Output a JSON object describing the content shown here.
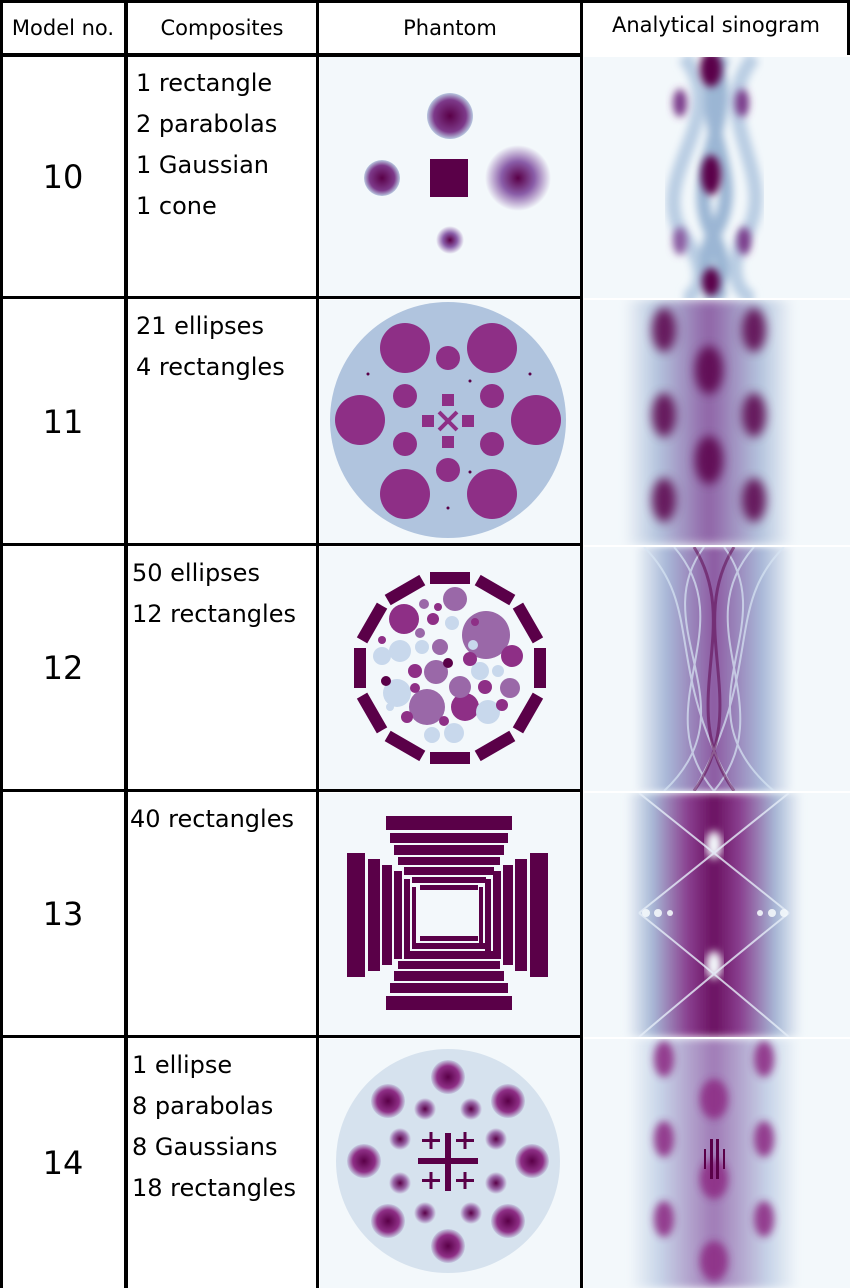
{
  "headers": {
    "model": "Model no.",
    "composites": "Composites",
    "phantom": "Phantom",
    "sinogram": "Analytical sinogram"
  },
  "rows": [
    {
      "model": "10",
      "composites": [
        "1 rectangle",
        "2 parabolas",
        "1 Gaussian",
        "1 cone"
      ]
    },
    {
      "model": "11",
      "composites": [
        "21 ellipses",
        "4 rectangles"
      ]
    },
    {
      "model": "12",
      "composites": [
        "50 ellipses",
        "12 rectangles"
      ]
    },
    {
      "model": "13",
      "composites": [
        "40 rectangles"
      ]
    },
    {
      "model": "14",
      "composites": [
        "1 ellipse",
        "8 parabolas",
        "8 Gaussians",
        "18 rectangles"
      ]
    }
  ],
  "colors": {
    "dark_purple": "#5a0048",
    "purple": "#8e2f86",
    "mid_purple": "#9a68a8",
    "light_blue": "#b0c4de",
    "pale_bg": "#f3f8fb",
    "sinogram_blue": "#c7d6e8"
  }
}
